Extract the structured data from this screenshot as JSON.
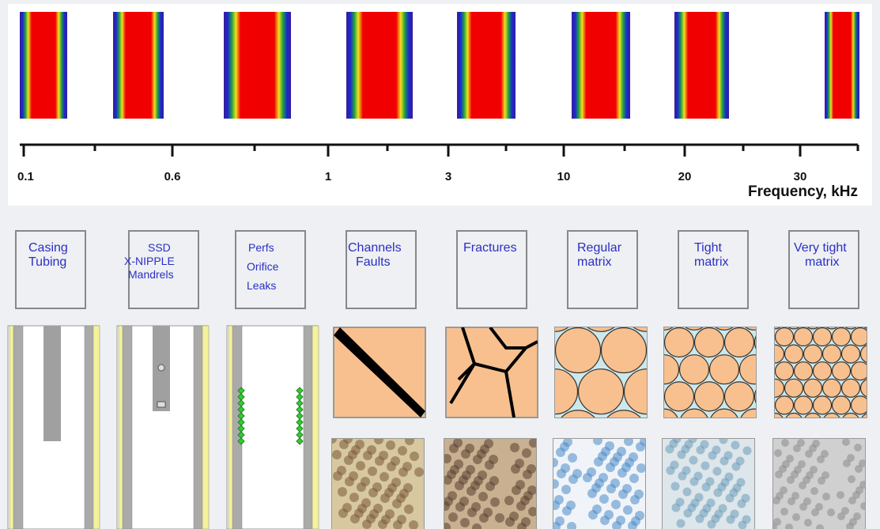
{
  "axis": {
    "tick_labels": [
      "0.1",
      "0.6",
      "1",
      "3",
      "10",
      "20",
      "30"
    ],
    "title": "Frequency, kHz"
  },
  "categories": [
    {
      "lines": [
        "Casing",
        "Tubing"
      ]
    },
    {
      "lines": [
        "SSD",
        "X-NIPPLE",
        "Mandrels"
      ]
    },
    {
      "lines": [
        "Perfs",
        "Orifice",
        "Leaks"
      ]
    },
    {
      "lines": [
        "Channels",
        "Faults"
      ]
    },
    {
      "lines": [
        "Fractures"
      ]
    },
    {
      "lines": [
        "Regular",
        "matrix"
      ]
    },
    {
      "lines": [
        "Tight",
        "matrix"
      ]
    },
    {
      "lines": [
        "Very tight",
        "matrix"
      ]
    }
  ]
}
